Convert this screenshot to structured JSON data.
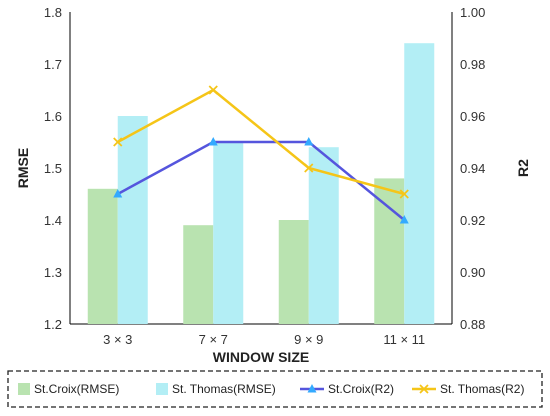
{
  "chart_data": {
    "type": "bar+line",
    "categories": [
      "3 × 3",
      "7 × 7",
      "9 × 9",
      "11 × 11"
    ],
    "xlabel": "WINDOW SIZE",
    "ylabel_left": "RMSE",
    "ylabel_right": "R2",
    "ylim_left": [
      1.2,
      1.8
    ],
    "ylim_right": [
      0.88,
      1.0
    ],
    "yticks_left": [
      "1.2",
      "1.3",
      "1.4",
      "1.5",
      "1.6",
      "1.7",
      "1.8"
    ],
    "yticks_right": [
      "0.88",
      "0.90",
      "0.92",
      "0.94",
      "0.96",
      "0.98",
      "1.00"
    ],
    "grid": false,
    "legend_position": "bottom",
    "bar_series": [
      {
        "name": "St.Croix(RMSE)",
        "values": [
          1.46,
          1.39,
          1.4,
          1.48
        ],
        "color": "#b9e3b0",
        "axis": "left"
      },
      {
        "name": "St. Thomas(RMSE)",
        "values": [
          1.6,
          1.55,
          1.54,
          1.74
        ],
        "color": "#b3eef5",
        "axis": "left"
      }
    ],
    "line_series": [
      {
        "name": "St.Croix(R2)",
        "values": [
          0.93,
          0.95,
          0.95,
          0.92
        ],
        "color": "#5555dd",
        "marker": "triangle",
        "marker_color": "#33aaff",
        "axis": "right"
      },
      {
        "name": "St. Thomas(R2)",
        "values": [
          0.95,
          0.97,
          0.94,
          0.93
        ],
        "color": "#f5c518",
        "marker": "x",
        "marker_color": "#f5c518",
        "axis": "right"
      }
    ]
  }
}
